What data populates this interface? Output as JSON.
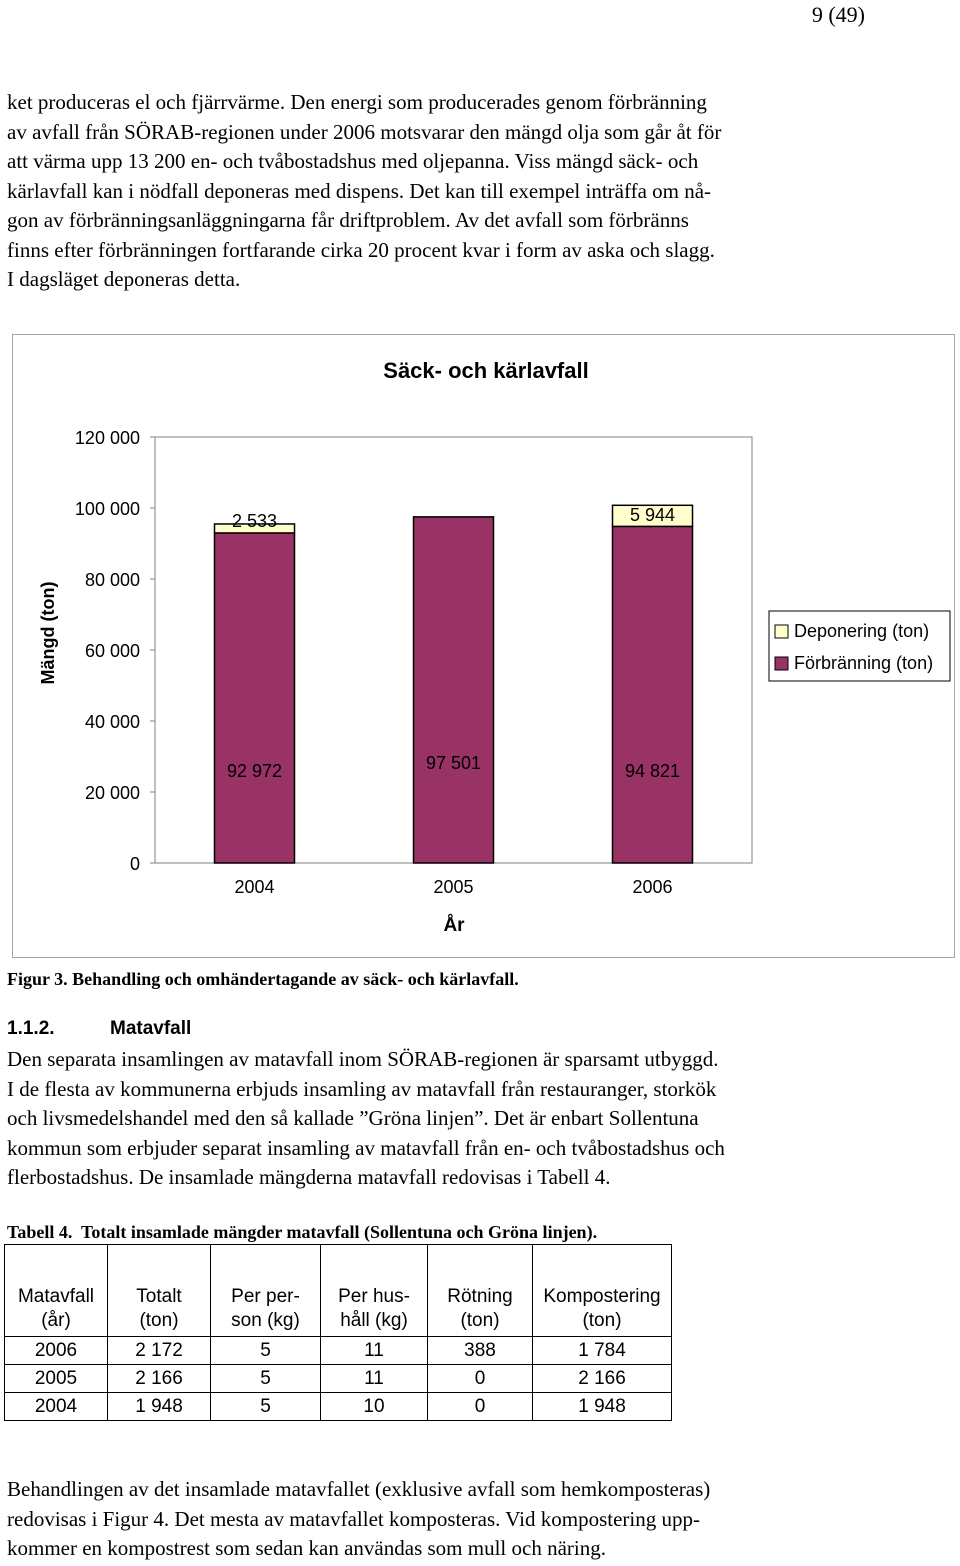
{
  "page_number": "9 (49)",
  "intro_text": [
    "ket produceras el och fjärrvärme. Den energi som producerades genom förbränning",
    "av avfall från SÖRAB-regionen under 2006 motsvarar den mängd olja som går åt för",
    "att värma upp 13 200 en- och tvåbostadshus med oljepanna. Viss mängd säck- och",
    "kärlavfall kan i nödfall deponeras med dispens. Det kan till exempel inträffa om nå-",
    "gon av förbränningsanläggningarna får driftproblem. Av det avfall som förbränns",
    "finns efter förbränningen fortfarande cirka 20 procent kvar i form av aska och slagg.",
    "I dagsläget deponeras detta."
  ],
  "chart_data": {
    "type": "bar",
    "stacked": true,
    "title": "Säck- och kärlavfall",
    "xlabel": "År",
    "ylabel": "Mängd (ton)",
    "categories": [
      "2004",
      "2005",
      "2006"
    ],
    "ylim": [
      0,
      120000
    ],
    "yticks": [
      0,
      20000,
      40000,
      60000,
      80000,
      100000,
      120000
    ],
    "ytick_labels": [
      "0",
      "20 000",
      "40 000",
      "60 000",
      "80 000",
      "100 000",
      "120 000"
    ],
    "series": [
      {
        "name": "Förbränning (ton)",
        "values": [
          92972,
          97501,
          94821
        ],
        "labels": [
          "92 972",
          "97 501",
          "94 821"
        ],
        "color": "#993366"
      },
      {
        "name": "Deponering (ton)",
        "values": [
          2533,
          0,
          5944
        ],
        "labels": [
          "2 533",
          "",
          "5 944"
        ],
        "color": "#ffffcc"
      }
    ],
    "legend_order": [
      "Deponering (ton)",
      "Förbränning (ton)"
    ],
    "legend_position": "right",
    "grid": false
  },
  "figure_caption": "Figur 3. Behandling och omhändertagande av säck- och kärlavfall.",
  "section": {
    "number": "1.1.2.",
    "title": "Matavfall"
  },
  "section_text": [
    "Den separata insamlingen av matavfall inom SÖRAB-regionen är sparsamt utbyggd.",
    "I de flesta av kommunerna erbjuds insamling av matavfall från restauranger, storkök",
    "och livsmedelshandel med den så kallade ”Gröna linjen”. Det är enbart Sollentuna",
    "kommun som erbjuder separat insamling av matavfall från en- och tvåbostadshus och",
    "flerbostadshus. De insamlade mängderna matavfall redovisas i Tabell 4."
  ],
  "table_caption": "Tabell 4.  Totalt insamlade mängder matavfall (Sollentuna och Gröna linjen).",
  "table": {
    "headers": [
      [
        "Matavfall",
        "(år)"
      ],
      [
        "Totalt",
        "(ton)"
      ],
      [
        "Per per-",
        "son (kg)"
      ],
      [
        "Per hus-",
        "håll (kg)"
      ],
      [
        "Rötning",
        "(ton)"
      ],
      [
        "Kompostering",
        "(ton)"
      ]
    ],
    "rows": [
      [
        "2006",
        "2 172",
        "5",
        "11",
        "388",
        "1 784"
      ],
      [
        "2005",
        "2 166",
        "5",
        "11",
        "0",
        "2 166"
      ],
      [
        "2004",
        "1 948",
        "5",
        "10",
        "0",
        "1 948"
      ]
    ]
  },
  "closing_text": [
    "Behandlingen av det insamlade matavfallet (exklusive avfall som hemkomposteras)",
    "redovisas i Figur 4. Det mesta av matavfallet komposteras. Vid kompostering upp-",
    "kommer en kompostrest som sedan kan användas som mull och näring."
  ]
}
